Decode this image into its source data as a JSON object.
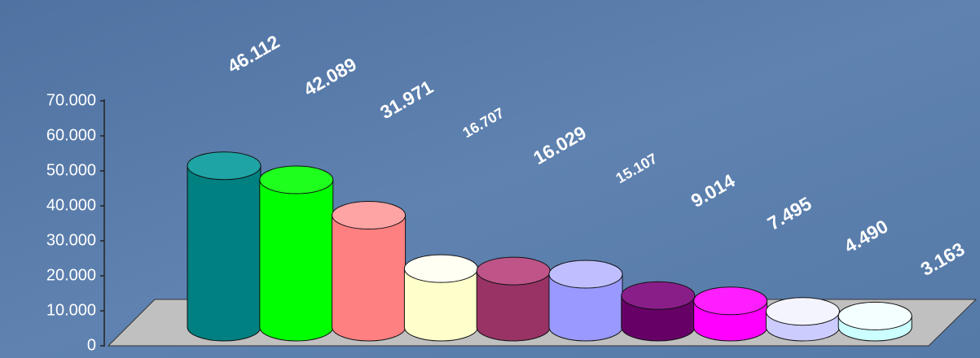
{
  "chart_data": {
    "type": "bar3d",
    "values": [
      46112,
      42089,
      31971,
      16707,
      16029,
      15107,
      9014,
      7495,
      4490,
      3163
    ],
    "value_labels": [
      "46.112",
      "42.089",
      "31.971",
      "16.707",
      "16.029",
      "15.107",
      "9.014",
      "7.495",
      "4.490",
      "3.163"
    ],
    "colors": [
      "#008080",
      "#00ff00",
      "#ff8080",
      "#ffffcc",
      "#993366",
      "#9999ff",
      "#660066",
      "#ff00ff",
      "#ccccff",
      "#ccffff"
    ],
    "ylim": [
      0,
      70000
    ],
    "yticks": [
      0,
      {
        "value": 10000,
        "label": "10.000"
      },
      {
        "value": 20000,
        "label": "20.000"
      },
      {
        "value": 30000,
        "label": "30.000"
      },
      {
        "value": 40000,
        "label": "40.000"
      },
      {
        "value": 50000,
        "label": "50.000"
      },
      {
        "value": 60000,
        "label": "60.000"
      },
      {
        "value": 70000,
        "label": "70.000"
      }
    ]
  }
}
